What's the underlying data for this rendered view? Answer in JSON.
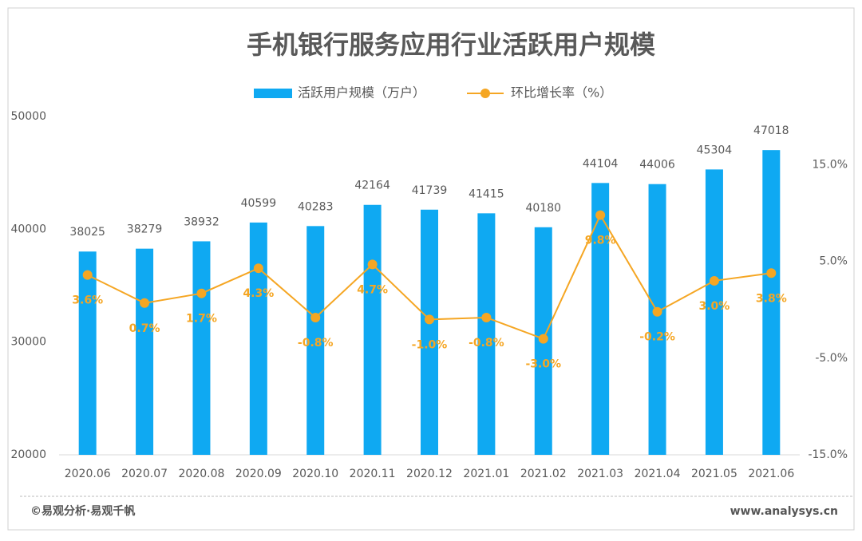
{
  "chart_data": {
    "type": "bar_line",
    "title": "手机银行服务应用行业活跃用户规模",
    "categories": [
      "2020.06",
      "2020.07",
      "2020.08",
      "2020.09",
      "2020.10",
      "2020.11",
      "2020.12",
      "2021.01",
      "2021.02",
      "2021.03",
      "2021.04",
      "2021.05",
      "2021.06"
    ],
    "series": [
      {
        "name": "活跃用户规模（万户）",
        "type": "bar",
        "color": "#0fa9f2",
        "values": [
          38025,
          38279,
          38932,
          40599,
          40283,
          42164,
          41739,
          41415,
          40180,
          44104,
          44006,
          45304,
          47018
        ]
      },
      {
        "name": "环比增长率（%）",
        "type": "line",
        "color": "#f5a623",
        "axis": "y2",
        "values": [
          3.6,
          0.7,
          1.7,
          4.3,
          -0.8,
          4.7,
          -1.0,
          -0.8,
          -3.0,
          9.8,
          -0.2,
          3.0,
          3.8
        ],
        "value_labels": [
          "3.6%",
          "0.7%",
          "1.7%",
          "4.3%",
          "-0.8%",
          "4.7%",
          "-1.0%",
          "-0.8%",
          "-3.0%",
          "9.8%",
          "-0.2%",
          "3.0%",
          "3.8%"
        ]
      }
    ],
    "ylim": [
      20000,
      50000
    ],
    "yticks": [
      20000,
      30000,
      40000,
      50000
    ],
    "y2lim": [
      -15,
      20
    ],
    "y2ticks": [
      {
        "value": -15,
        "label": "-15.0%"
      },
      {
        "value": -5,
        "label": "-5.0%"
      },
      {
        "value": 5,
        "label": "5.0%"
      },
      {
        "value": 15,
        "label": "15.0%"
      }
    ],
    "grid": false,
    "legend": "top"
  },
  "footer": {
    "source": "©易观分析·易观千帆",
    "website": "www.analysys.cn"
  }
}
